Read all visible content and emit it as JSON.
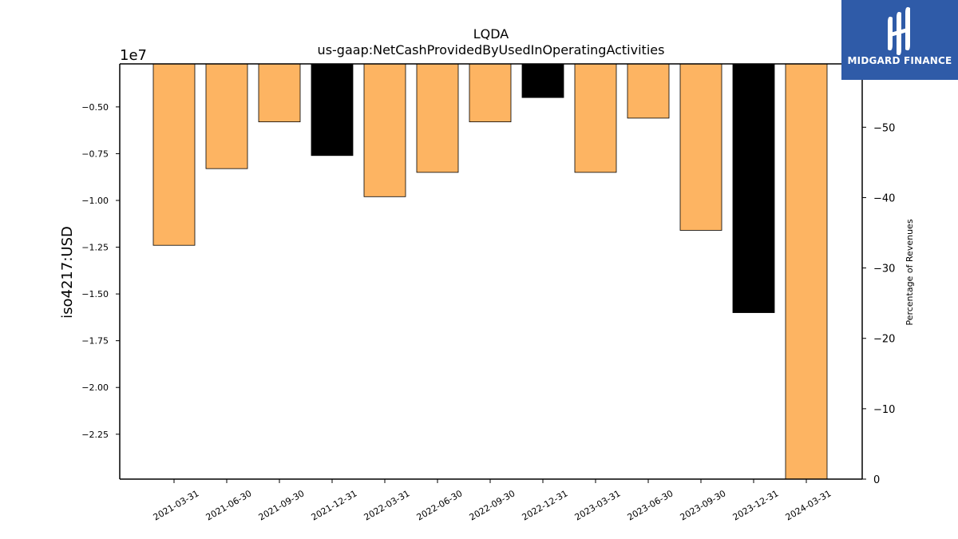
{
  "chart_data": {
    "type": "bar",
    "title": "LQDA",
    "subtitle": "us-gaap:NetCashProvidedByUsedInOperatingActivities",
    "ylabel": "iso4217:USD",
    "y_offset_label": "1e7",
    "y2label": "Percentage of Revenues",
    "categories": [
      "2021-03-31",
      "2021-06-30",
      "2021-09-30",
      "2021-12-31",
      "2022-03-31",
      "2022-06-30",
      "2022-09-30",
      "2022-12-31",
      "2023-03-31",
      "2023-06-30",
      "2023-09-30",
      "2023-12-31",
      "2024-03-31"
    ],
    "values": [
      -12400000,
      -8300000,
      -5800000,
      -7600000,
      -9800000,
      -8500000,
      -5800000,
      -4500000,
      -8500000,
      -5600000,
      -11600000,
      -16000000,
      -25000000
    ],
    "bar_colors": [
      "#fdb462",
      "#fdb462",
      "#fdb462",
      "#000000",
      "#fdb462",
      "#fdb462",
      "#fdb462",
      "#000000",
      "#fdb462",
      "#fdb462",
      "#fdb462",
      "#000000",
      "#fdb462"
    ],
    "ylim": [
      -24900000.0,
      -2700000.0
    ],
    "yticks": [
      -22500000,
      -20000000,
      -17500000,
      -15000000,
      -12500000,
      -10000000,
      -7500000,
      -5000000
    ],
    "ytick_labels": [
      "−2.25",
      "−2.00",
      "−1.75",
      "−1.50",
      "−1.25",
      "−1.00",
      "−0.75",
      "−0.50"
    ],
    "y2lim": [
      0,
      -59
    ],
    "y2ticks": [
      0,
      -10,
      -20,
      -30,
      -40,
      -50
    ],
    "y2tick_labels": [
      "0",
      "−10",
      "−20",
      "−30",
      "−40",
      "−50"
    ]
  },
  "logo": {
    "text": "MIDGARD FINANCE",
    "bg": "#2f5ba8"
  }
}
